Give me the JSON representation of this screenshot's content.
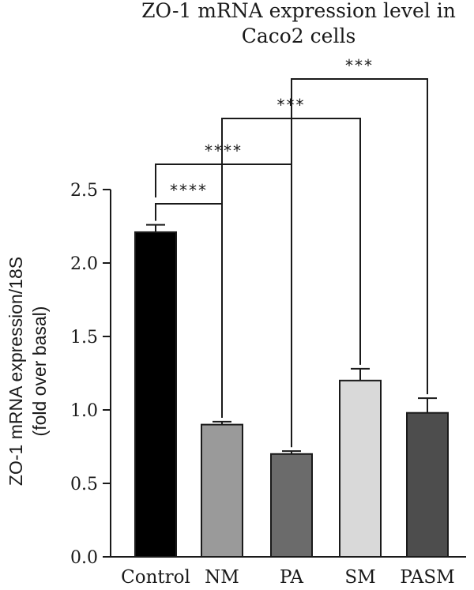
{
  "chart_data": {
    "type": "bar",
    "title_lines": [
      "ZO-1 mRNA expression level in",
      "Caco2 cells"
    ],
    "ylabel_lines": [
      "ZO-1 mRNA expression/18S",
      "(fold over basal)"
    ],
    "xlabel": "",
    "ylim": [
      0,
      2.5
    ],
    "yticks": [
      "0.0",
      "0.5",
      "1.0",
      "1.5",
      "2.0",
      "2.5"
    ],
    "categories": [
      "Control",
      "NM",
      "PA",
      "SM",
      "PASM"
    ],
    "values": [
      2.21,
      0.9,
      0.7,
      1.2,
      0.98
    ],
    "errors": [
      0.05,
      0.02,
      0.02,
      0.08,
      0.1
    ],
    "colors": [
      "#000000",
      "#9a9a9a",
      "#6b6b6b",
      "#d9d9d9",
      "#4d4d4d"
    ],
    "grid": false,
    "significance": [
      {
        "from": "Control",
        "to": "NM",
        "label": "****"
      },
      {
        "from": "Control",
        "to": "PA",
        "label": "****"
      },
      {
        "from": "NM",
        "to": "SM",
        "label": "***"
      },
      {
        "from": "PA",
        "to": "PASM",
        "label": "***"
      }
    ]
  }
}
